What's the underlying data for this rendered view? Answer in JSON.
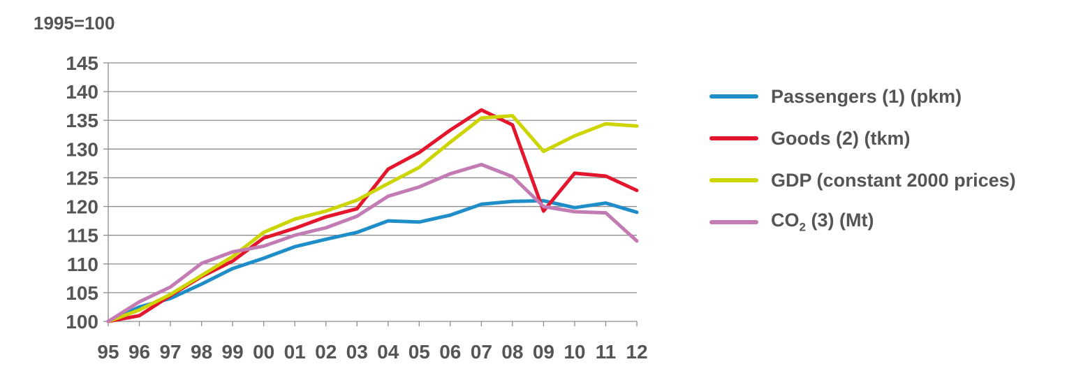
{
  "chart_data": {
    "type": "line",
    "unit_label": "1995=100",
    "categories": [
      "95",
      "96",
      "97",
      "98",
      "99",
      "00",
      "01",
      "02",
      "03",
      "04",
      "05",
      "06",
      "07",
      "08",
      "09",
      "10",
      "11",
      "12"
    ],
    "ylim": [
      100,
      145
    ],
    "yticks": [
      100,
      105,
      110,
      115,
      120,
      125,
      130,
      135,
      140,
      145
    ],
    "grid": true,
    "legend_position": "right",
    "series": [
      {
        "name": "Passengers (1) (pkm)",
        "color": "#1f8dc8",
        "values": [
          100,
          102.5,
          104,
          106.5,
          109.2,
          111,
          113,
          114.3,
          115.5,
          117.5,
          117.3,
          118.5,
          120.4,
          120.9,
          121,
          119.8,
          120.6,
          119
        ]
      },
      {
        "name": "Goods (2) (tkm)",
        "color": "#e3162d",
        "values": [
          100,
          101,
          104.5,
          107.8,
          110.5,
          114.5,
          116.2,
          118.2,
          119.6,
          126.5,
          129.4,
          133.3,
          136.8,
          134.2,
          119.2,
          125.8,
          125.3,
          122.8
        ]
      },
      {
        "name": "GDP (constant 2000 prices)",
        "color": "#cdd500",
        "values": [
          100,
          102,
          104.7,
          108,
          111.3,
          115.5,
          117.8,
          119.2,
          121.1,
          124,
          126.8,
          131.2,
          135.4,
          135.8,
          129.6,
          132.3,
          134.4,
          134
        ]
      },
      {
        "name": "CO2 (3) (Mt)",
        "color": "#c37cb3",
        "values": [
          100,
          103.4,
          106,
          110.1,
          112.1,
          113.1,
          115,
          116.3,
          118.3,
          121.8,
          123.4,
          125.7,
          127.3,
          125.2,
          120,
          119.1,
          118.9,
          114
        ]
      }
    ],
    "legend": [
      {
        "text": "Passengers (1) (pkm)"
      },
      {
        "text": "Goods (2) (tkm)"
      },
      {
        "text": "GDP (constant 2000 prices)"
      },
      {
        "pre": "CO",
        "sub": "2",
        "post": " (3) (Mt)"
      }
    ]
  }
}
